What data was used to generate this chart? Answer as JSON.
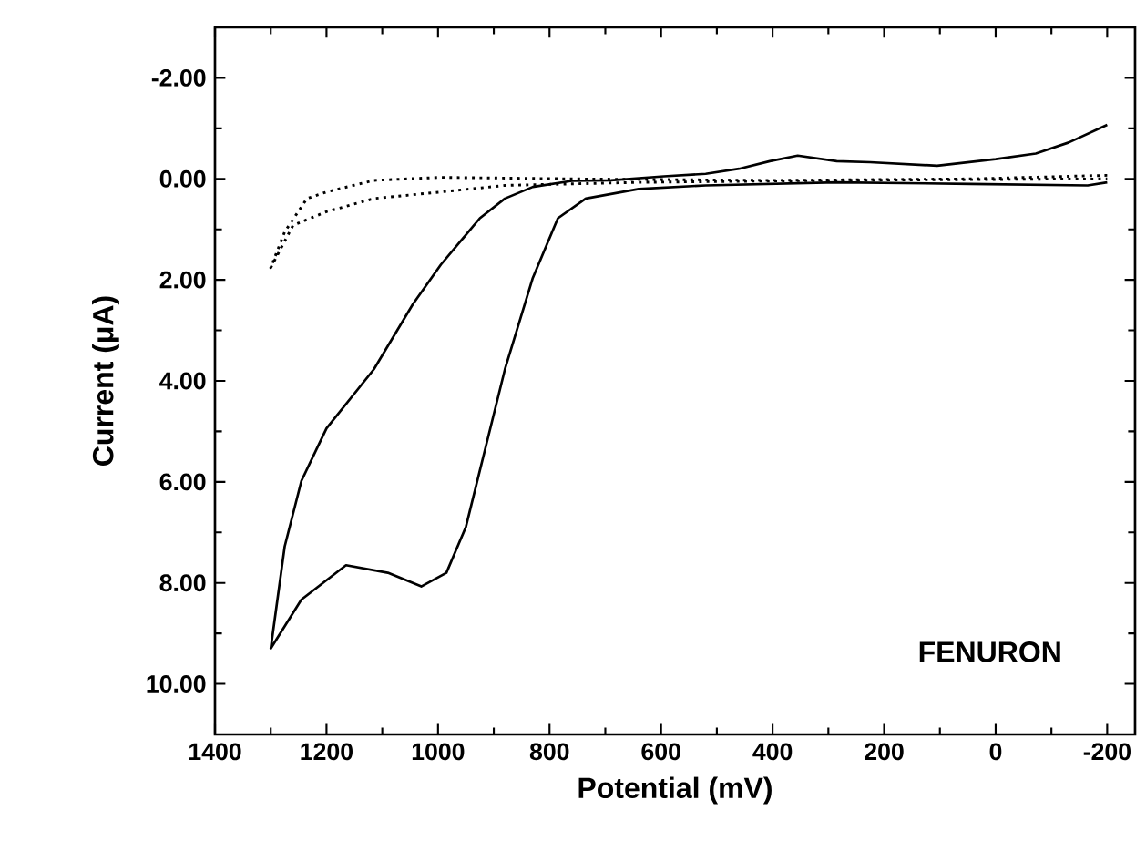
{
  "chart_data": {
    "type": "line",
    "xlabel": "Potential (mV)",
    "ylabel": "Current (μA)",
    "xlim": [
      1400,
      -250
    ],
    "ylim": [
      11,
      -3
    ],
    "xticks": [
      1400,
      1200,
      1000,
      800,
      600,
      400,
      200,
      0,
      -200
    ],
    "yticks": [
      {
        "value": -2,
        "label": "-2.00"
      },
      {
        "value": 0,
        "label": "0.00"
      },
      {
        "value": 2,
        "label": "2.00"
      },
      {
        "value": 4,
        "label": "4.00"
      },
      {
        "value": 6,
        "label": "6.00"
      },
      {
        "value": 8,
        "label": "8.00"
      },
      {
        "value": 10,
        "label": "10.00"
      }
    ],
    "marker": "none",
    "annotations": [
      "FENURON"
    ],
    "series": [
      {
        "color": "#000000",
        "line_style": "solid",
        "x": [
          -200,
          -131,
          -72,
          0,
          105,
          225,
          285,
          355,
          405,
          460,
          520,
          595,
          690,
          760,
          830,
          880,
          925,
          995,
          1045,
          1115,
          1200,
          1245,
          1275,
          1300,
          1245,
          1165,
          1090,
          1030,
          985,
          950,
          915,
          880,
          830,
          785,
          735,
          640,
          520,
          285,
          45,
          -165,
          -200
        ],
        "values": [
          -1.07,
          -0.72,
          -0.5,
          -0.39,
          -0.26,
          -0.33,
          -0.35,
          -0.46,
          -0.35,
          -0.2,
          -0.1,
          -0.05,
          0.03,
          0.04,
          0.16,
          0.39,
          0.78,
          1.7,
          2.48,
          3.77,
          4.94,
          5.98,
          7.28,
          9.3,
          8.33,
          7.65,
          7.8,
          8.07,
          7.8,
          6.89,
          5.33,
          3.77,
          1.96,
          0.78,
          0.39,
          0.2,
          0.13,
          0.07,
          0.1,
          0.13,
          0.07
        ]
      },
      {
        "color": "#000000",
        "line_style": "dotted",
        "x": [
          -200,
          45,
          405,
          760,
          995,
          1115,
          1200,
          1235,
          1275,
          1300,
          1260,
          1200,
          1115,
          995,
          880,
          640,
          285,
          -200
        ],
        "values": [
          -0.07,
          0,
          0.03,
          0,
          -0.03,
          0.03,
          0.26,
          0.39,
          1.05,
          1.76,
          0.92,
          0.65,
          0.39,
          0.26,
          0.13,
          0.07,
          0.03,
          0
        ]
      }
    ]
  }
}
